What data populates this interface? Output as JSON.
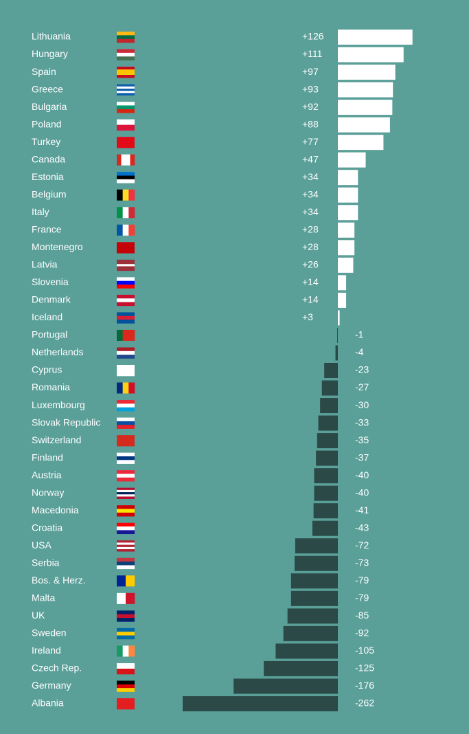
{
  "chart_data": {
    "type": "diverging-bar",
    "categories": [
      "Lithuania",
      "Hungary",
      "Spain",
      "Greece",
      "Bulgaria",
      "Poland",
      "Turkey",
      "Canada",
      "Estonia",
      "Belgium",
      "Italy",
      "France",
      "Montenegro",
      "Latvia",
      "Slovenia",
      "Denmark",
      "Iceland",
      "Portugal",
      "Netherlands",
      "Cyprus",
      "Romania",
      "Luxembourg",
      "Slovak Republic",
      "Switzerland",
      "Finland",
      "Austria",
      "Norway",
      "Macedonia",
      "Croatia",
      "USA",
      "Serbia",
      "Bos. & Herz.",
      "Malta",
      "UK",
      "Sweden",
      "Ireland",
      "Czech Rep.",
      "Germany",
      "Albania"
    ],
    "values": [
      126,
      111,
      97,
      93,
      92,
      88,
      77,
      47,
      34,
      34,
      34,
      28,
      28,
      26,
      14,
      14,
      3,
      -1,
      -4,
      -23,
      -27,
      -30,
      -33,
      -35,
      -37,
      -40,
      -40,
      -41,
      -43,
      -72,
      -73,
      -79,
      -79,
      -85,
      -92,
      -105,
      -125,
      -176,
      -262
    ],
    "value_labels": [
      "+126",
      "+111",
      "+97",
      "+93",
      "+92",
      "+88",
      "+77",
      "+47",
      "+34",
      "+34",
      "+34",
      "+28",
      "+28",
      "+26",
      "+14",
      "+14",
      "+3",
      "-1",
      "-4",
      "-23",
      "-27",
      "-30",
      "-33",
      "-35",
      "-37",
      "-40",
      "-40",
      "-41",
      "-43",
      "-72",
      "-73",
      "-79",
      "-79",
      "-85",
      "-92",
      "-105",
      "-125",
      "-176",
      "-262"
    ],
    "colors": {
      "positive": "#ffffff",
      "negative": "#2b4a47"
    }
  }
}
